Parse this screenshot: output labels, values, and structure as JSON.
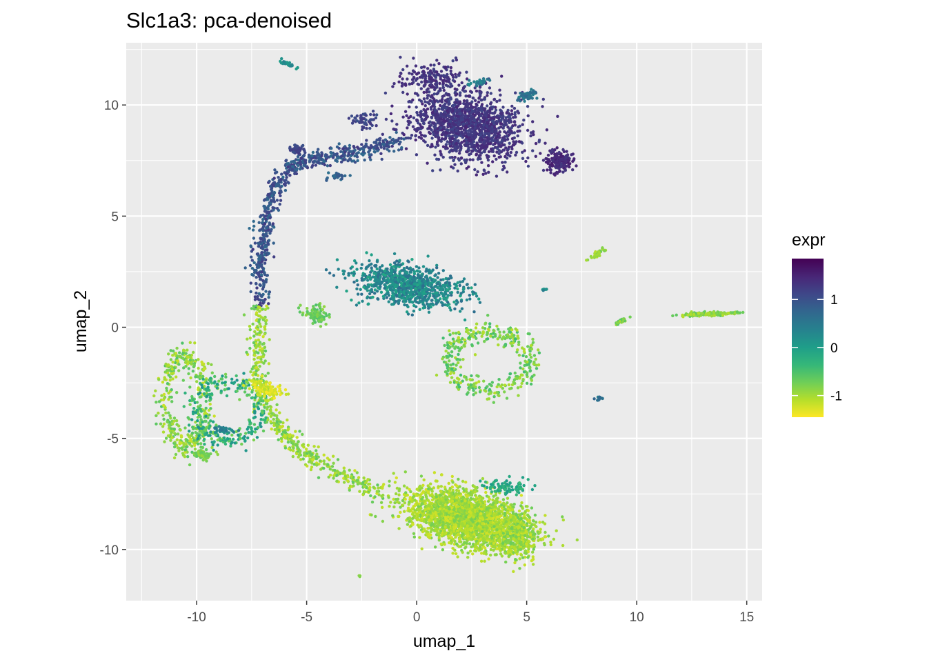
{
  "chart_data": {
    "type": "scatter",
    "title": "Slc1a3: pca-denoised",
    "xlabel": "umap_1",
    "ylabel": "umap_2",
    "xlim": [
      -13.2,
      15.7
    ],
    "ylim": [
      -12.3,
      12.8
    ],
    "x_ticks": [
      -10,
      -5,
      0,
      5,
      10,
      15
    ],
    "x_tick_labels": [
      "-10",
      "-5",
      "0",
      "5",
      "10",
      "15"
    ],
    "y_ticks": [
      -10,
      -5,
      0,
      5,
      10
    ],
    "y_tick_labels": [
      "-10",
      "-5",
      "0",
      "5",
      "10"
    ],
    "grid": true,
    "panel_background": "#ebebeb",
    "grid_color": "#ffffff",
    "legend": {
      "title": "expr",
      "position": "right",
      "range": [
        -1.45,
        1.85
      ],
      "ticks": [
        1,
        0,
        -1
      ],
      "tick_labels": [
        "1",
        "0",
        "-1"
      ],
      "colormap": "viridis",
      "colors": [
        "#fde725",
        "#b5de2b",
        "#6ece58",
        "#35b779",
        "#1f9e89",
        "#26828e",
        "#31688e",
        "#3e4989",
        "#482878",
        "#440154"
      ]
    },
    "clusters": [
      {
        "shape": "blob",
        "center": [
          2.3,
          9.1
        ],
        "spread": [
          2.3,
          1.4
        ],
        "angle": -12,
        "expr": [
          1.15,
          1.5
        ],
        "n": 1400
      },
      {
        "shape": "blob",
        "center": [
          0.6,
          11.2
        ],
        "spread": [
          1.2,
          0.6
        ],
        "angle": 0,
        "expr": [
          1.2,
          1.5
        ],
        "n": 160
      },
      {
        "shape": "blob",
        "center": [
          6.5,
          7.5
        ],
        "spread": [
          0.6,
          0.45
        ],
        "angle": 0,
        "expr": [
          1.3,
          1.6
        ],
        "n": 160
      },
      {
        "shape": "blob",
        "center": [
          5.0,
          10.4
        ],
        "spread": [
          0.6,
          0.2
        ],
        "angle": 25,
        "expr": [
          0.4,
          0.8
        ],
        "n": 50
      },
      {
        "shape": "blob",
        "center": [
          2.8,
          11.0
        ],
        "spread": [
          0.5,
          0.15
        ],
        "angle": 10,
        "expr": [
          0.2,
          0.7
        ],
        "n": 25
      },
      {
        "shape": "path",
        "points": [
          [
            -0.8,
            8.4
          ],
          [
            -2.6,
            7.9
          ],
          [
            -4.4,
            7.6
          ],
          [
            -5.6,
            7.3
          ],
          [
            -6.5,
            6.2
          ],
          [
            -6.9,
            4.5
          ],
          [
            -7.1,
            2.8
          ],
          [
            -7.1,
            1.0
          ]
        ],
        "width": 0.4,
        "expr": [
          0.7,
          1.3
        ],
        "n": 650
      },
      {
        "shape": "blob",
        "center": [
          -2.4,
          9.3
        ],
        "spread": [
          0.5,
          0.35
        ],
        "angle": 0,
        "expr": [
          1.0,
          1.3
        ],
        "n": 50
      },
      {
        "shape": "blob",
        "center": [
          -5.4,
          8.0
        ],
        "spread": [
          0.3,
          0.25
        ],
        "angle": 0,
        "expr": [
          1.0,
          1.3
        ],
        "n": 40
      },
      {
        "shape": "blob",
        "center": [
          -3.6,
          6.8
        ],
        "spread": [
          0.4,
          0.2
        ],
        "angle": 0,
        "expr": [
          0.6,
          1.0
        ],
        "n": 25
      },
      {
        "shape": "blob",
        "center": [
          -5.8,
          11.8
        ],
        "spread": [
          0.5,
          0.08
        ],
        "angle": -20,
        "expr": [
          0.0,
          0.5
        ],
        "n": 25
      },
      {
        "shape": "blob",
        "center": [
          -0.4,
          1.9
        ],
        "spread": [
          2.2,
          0.8
        ],
        "angle": -10,
        "expr": [
          -0.1,
          0.7
        ],
        "n": 900
      },
      {
        "shape": "blob",
        "center": [
          -4.6,
          0.6
        ],
        "spread": [
          0.5,
          0.35
        ],
        "angle": 0,
        "expr": [
          -0.9,
          -0.5
        ],
        "n": 90
      },
      {
        "shape": "ring",
        "center": [
          3.3,
          -1.5
        ],
        "radius": [
          1.8,
          1.3
        ],
        "width": 0.25,
        "expr": [
          -1.1,
          -0.4
        ],
        "n": 360
      },
      {
        "shape": "path",
        "points": [
          [
            -7.1,
            1.0
          ],
          [
            -7.3,
            -1.2
          ],
          [
            -7.0,
            -3.2
          ],
          [
            -6.2,
            -4.6
          ],
          [
            -5.0,
            -5.7
          ],
          [
            -3.2,
            -6.8
          ],
          [
            -1.6,
            -7.5
          ]
        ],
        "width": 0.45,
        "expr": [
          -1.2,
          -0.6
        ],
        "n": 520
      },
      {
        "shape": "blob",
        "center": [
          2.3,
          -8.6
        ],
        "spread": [
          2.4,
          1.05
        ],
        "angle": -14,
        "expr": [
          -1.25,
          -0.75
        ],
        "n": 2500
      },
      {
        "shape": "blob",
        "center": [
          4.6,
          -9.3
        ],
        "spread": [
          0.9,
          1.0
        ],
        "angle": 0,
        "expr": [
          -1.2,
          -0.7
        ],
        "n": 350
      },
      {
        "shape": "blob",
        "center": [
          4.2,
          -7.2
        ],
        "spread": [
          1.0,
          0.3
        ],
        "angle": 0,
        "expr": [
          -0.4,
          0.1
        ],
        "n": 90
      },
      {
        "shape": "ring",
        "center": [
          -10.5,
          -3.3
        ],
        "radius": [
          0.9,
          2.0
        ],
        "width": 0.25,
        "expr": [
          -1.2,
          -0.5
        ],
        "n": 380
      },
      {
        "shape": "ring",
        "center": [
          -8.6,
          -3.8
        ],
        "radius": [
          1.5,
          1.3
        ],
        "width": 0.22,
        "expr": [
          -0.8,
          0.2
        ],
        "n": 280
      },
      {
        "shape": "blob",
        "center": [
          -6.8,
          -2.8
        ],
        "spread": [
          0.7,
          0.3
        ],
        "angle": -20,
        "expr": [
          -1.45,
          -1.1
        ],
        "n": 120
      },
      {
        "shape": "blob",
        "center": [
          -9.8,
          -5.7
        ],
        "spread": [
          0.5,
          0.25
        ],
        "angle": 0,
        "expr": [
          -1.0,
          -0.6
        ],
        "n": 60
      },
      {
        "shape": "blob",
        "center": [
          -8.8,
          -4.6
        ],
        "spread": [
          0.5,
          0.1
        ],
        "angle": 0,
        "expr": [
          0.2,
          0.6
        ],
        "n": 35
      },
      {
        "shape": "blob",
        "center": [
          8.2,
          3.3
        ],
        "spread": [
          0.35,
          0.1
        ],
        "angle": 35,
        "expr": [
          -1.1,
          -0.7
        ],
        "n": 40
      },
      {
        "shape": "blob",
        "center": [
          13.2,
          0.6
        ],
        "spread": [
          1.1,
          0.08
        ],
        "angle": 2,
        "expr": [
          -1.1,
          -0.6
        ],
        "n": 150
      },
      {
        "shape": "blob",
        "center": [
          9.3,
          0.3
        ],
        "spread": [
          0.3,
          0.1
        ],
        "angle": 35,
        "expr": [
          -1.0,
          -0.5
        ],
        "n": 30
      },
      {
        "shape": "blob",
        "center": [
          8.3,
          -3.2
        ],
        "spread": [
          0.15,
          0.1
        ],
        "angle": 0,
        "expr": [
          0.3,
          0.8
        ],
        "n": 15
      },
      {
        "shape": "blob",
        "center": [
          5.8,
          1.7
        ],
        "spread": [
          0.1,
          0.06
        ],
        "angle": 0,
        "expr": [
          0.0,
          0.5
        ],
        "n": 10
      },
      {
        "shape": "blob",
        "center": [
          -2.6,
          -11.2
        ],
        "spread": [
          0.04,
          0.04
        ],
        "angle": 0,
        "expr": [
          -0.9,
          -0.7
        ],
        "n": 3
      }
    ]
  }
}
